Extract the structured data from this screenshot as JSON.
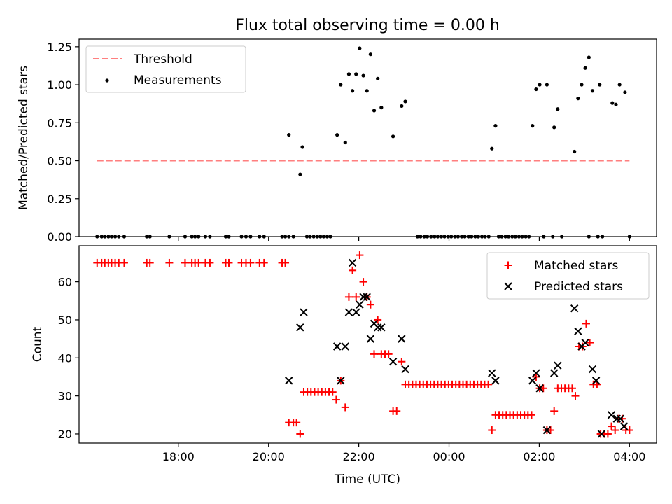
{
  "chart_data": {
    "title": "Flux total observing time = 0.00 h",
    "xlabel": "Time (UTC)",
    "x_unit": "hours since 16:00 UTC",
    "xlim": [
      -0.2,
      12.6
    ],
    "x_ticks": [
      {
        "value": 2,
        "label": "18:00"
      },
      {
        "value": 4,
        "label": "20:00"
      },
      {
        "value": 6,
        "label": "22:00"
      },
      {
        "value": 8,
        "label": "00:00"
      },
      {
        "value": 10,
        "label": "02:00"
      },
      {
        "value": 12,
        "label": "04:00"
      }
    ],
    "top": {
      "type": "scatter",
      "ylabel": "Matched/Predicted stars",
      "ylim": [
        0,
        1.3
      ],
      "y_ticks": [
        "0.00",
        "0.25",
        "0.50",
        "0.75",
        "1.00",
        "1.25"
      ],
      "threshold": {
        "label": "Threshold",
        "value": 0.5,
        "x_range": [
          0.2,
          12.0
        ],
        "color": "#ff7f7f"
      },
      "measurements": {
        "label": "Measurements",
        "color": "#000000",
        "points": [
          [
            0.2,
            0
          ],
          [
            0.3,
            0
          ],
          [
            0.37,
            0
          ],
          [
            0.45,
            0
          ],
          [
            0.52,
            0
          ],
          [
            0.6,
            0
          ],
          [
            0.68,
            0
          ],
          [
            0.8,
            0
          ],
          [
            1.3,
            0
          ],
          [
            1.37,
            0
          ],
          [
            1.8,
            0
          ],
          [
            2.15,
            0
          ],
          [
            2.3,
            0
          ],
          [
            2.37,
            0
          ],
          [
            2.45,
            0
          ],
          [
            2.6,
            0
          ],
          [
            2.7,
            0
          ],
          [
            3.05,
            0
          ],
          [
            3.12,
            0
          ],
          [
            3.4,
            0
          ],
          [
            3.5,
            0
          ],
          [
            3.6,
            0
          ],
          [
            3.8,
            0
          ],
          [
            3.9,
            0
          ],
          [
            4.3,
            0
          ],
          [
            4.37,
            0
          ],
          [
            4.45,
            0
          ],
          [
            4.55,
            0
          ],
          [
            4.85,
            0
          ],
          [
            4.92,
            0
          ],
          [
            5.0,
            0
          ],
          [
            5.08,
            0
          ],
          [
            5.15,
            0
          ],
          [
            5.22,
            0
          ],
          [
            5.3,
            0
          ],
          [
            5.37,
            0
          ],
          [
            7.3,
            0
          ],
          [
            7.37,
            0
          ],
          [
            7.45,
            0
          ],
          [
            7.52,
            0
          ],
          [
            7.6,
            0
          ],
          [
            7.68,
            0
          ],
          [
            7.75,
            0
          ],
          [
            7.83,
            0
          ],
          [
            7.9,
            0
          ],
          [
            7.98,
            0
          ],
          [
            8.05,
            0
          ],
          [
            8.13,
            0
          ],
          [
            8.2,
            0
          ],
          [
            8.28,
            0
          ],
          [
            8.35,
            0
          ],
          [
            8.43,
            0
          ],
          [
            8.5,
            0
          ],
          [
            8.58,
            0
          ],
          [
            8.65,
            0
          ],
          [
            8.73,
            0
          ],
          [
            8.8,
            0
          ],
          [
            8.88,
            0
          ],
          [
            9.1,
            0
          ],
          [
            9.17,
            0
          ],
          [
            9.25,
            0
          ],
          [
            9.32,
            0
          ],
          [
            9.4,
            0
          ],
          [
            9.47,
            0
          ],
          [
            9.55,
            0
          ],
          [
            9.62,
            0
          ],
          [
            9.7,
            0
          ],
          [
            9.77,
            0
          ],
          [
            10.1,
            0
          ],
          [
            10.3,
            0
          ],
          [
            10.5,
            0
          ],
          [
            11.1,
            0
          ],
          [
            11.3,
            0
          ],
          [
            11.4,
            0
          ],
          [
            12.0,
            0
          ],
          [
            4.45,
            0.67
          ],
          [
            4.7,
            0.41
          ],
          [
            4.75,
            0.59
          ],
          [
            5.52,
            0.67
          ],
          [
            5.6,
            1.0
          ],
          [
            5.7,
            0.62
          ],
          [
            5.78,
            1.07
          ],
          [
            5.86,
            0.96
          ],
          [
            5.94,
            1.07
          ],
          [
            6.02,
            1.24
          ],
          [
            6.1,
            1.06
          ],
          [
            6.18,
            0.96
          ],
          [
            6.26,
            1.2
          ],
          [
            6.34,
            0.83
          ],
          [
            6.42,
            1.04
          ],
          [
            6.5,
            0.85
          ],
          [
            6.76,
            0.66
          ],
          [
            6.95,
            0.86
          ],
          [
            7.03,
            0.89
          ],
          [
            8.95,
            0.58
          ],
          [
            9.03,
            0.73
          ],
          [
            9.85,
            0.73
          ],
          [
            9.93,
            0.97
          ],
          [
            10.01,
            1.0
          ],
          [
            10.17,
            1.0
          ],
          [
            10.33,
            0.72
          ],
          [
            10.41,
            0.84
          ],
          [
            10.78,
            0.56
          ],
          [
            10.86,
            0.91
          ],
          [
            10.94,
            1.0
          ],
          [
            11.02,
            1.11
          ],
          [
            11.1,
            1.18
          ],
          [
            11.18,
            0.96
          ],
          [
            11.34,
            1.0
          ],
          [
            11.62,
            0.88
          ],
          [
            11.7,
            0.87
          ],
          [
            11.78,
            1.0
          ],
          [
            11.9,
            0.95
          ]
        ]
      }
    },
    "bottom": {
      "type": "scatter",
      "ylabel": "Count",
      "ylim": [
        17.6,
        69.5
      ],
      "y_ticks": [
        "20",
        "30",
        "40",
        "50",
        "60"
      ],
      "matched": {
        "label": "Matched stars",
        "color": "#ff0000",
        "marker": "+",
        "points": [
          [
            0.2,
            65
          ],
          [
            0.3,
            65
          ],
          [
            0.37,
            65
          ],
          [
            0.45,
            65
          ],
          [
            0.52,
            65
          ],
          [
            0.6,
            65
          ],
          [
            0.68,
            65
          ],
          [
            0.8,
            65
          ],
          [
            1.3,
            65
          ],
          [
            1.37,
            65
          ],
          [
            1.8,
            65
          ],
          [
            2.15,
            65
          ],
          [
            2.3,
            65
          ],
          [
            2.37,
            65
          ],
          [
            2.45,
            65
          ],
          [
            2.6,
            65
          ],
          [
            2.7,
            65
          ],
          [
            3.05,
            65
          ],
          [
            3.12,
            65
          ],
          [
            3.4,
            65
          ],
          [
            3.5,
            65
          ],
          [
            3.6,
            65
          ],
          [
            3.8,
            65
          ],
          [
            3.9,
            65
          ],
          [
            4.3,
            65
          ],
          [
            4.37,
            65
          ],
          [
            4.45,
            23
          ],
          [
            4.55,
            23
          ],
          [
            4.62,
            23
          ],
          [
            4.7,
            20
          ],
          [
            4.78,
            31
          ],
          [
            4.86,
            31
          ],
          [
            4.94,
            31
          ],
          [
            5.02,
            31
          ],
          [
            5.1,
            31
          ],
          [
            5.18,
            31
          ],
          [
            5.26,
            31
          ],
          [
            5.34,
            31
          ],
          [
            5.42,
            31
          ],
          [
            5.5,
            29
          ],
          [
            5.6,
            34
          ],
          [
            5.7,
            27
          ],
          [
            5.78,
            56
          ],
          [
            5.86,
            63
          ],
          [
            5.94,
            56
          ],
          [
            6.02,
            67
          ],
          [
            6.1,
            60
          ],
          [
            6.18,
            56
          ],
          [
            6.26,
            54
          ],
          [
            6.34,
            41
          ],
          [
            6.42,
            50
          ],
          [
            6.5,
            41
          ],
          [
            6.58,
            41
          ],
          [
            6.66,
            41
          ],
          [
            6.76,
            26
          ],
          [
            6.84,
            26
          ],
          [
            6.95,
            39
          ],
          [
            7.03,
            33
          ],
          [
            7.11,
            33
          ],
          [
            7.19,
            33
          ],
          [
            7.27,
            33
          ],
          [
            7.35,
            33
          ],
          [
            7.43,
            33
          ],
          [
            7.51,
            33
          ],
          [
            7.59,
            33
          ],
          [
            7.67,
            33
          ],
          [
            7.75,
            33
          ],
          [
            7.83,
            33
          ],
          [
            7.91,
            33
          ],
          [
            7.99,
            33
          ],
          [
            8.07,
            33
          ],
          [
            8.15,
            33
          ],
          [
            8.23,
            33
          ],
          [
            8.31,
            33
          ],
          [
            8.39,
            33
          ],
          [
            8.47,
            33
          ],
          [
            8.55,
            33
          ],
          [
            8.63,
            33
          ],
          [
            8.71,
            33
          ],
          [
            8.79,
            33
          ],
          [
            8.87,
            33
          ],
          [
            8.95,
            21
          ],
          [
            9.03,
            25
          ],
          [
            9.11,
            25
          ],
          [
            9.19,
            25
          ],
          [
            9.27,
            25
          ],
          [
            9.35,
            25
          ],
          [
            9.43,
            25
          ],
          [
            9.51,
            25
          ],
          [
            9.59,
            25
          ],
          [
            9.67,
            25
          ],
          [
            9.75,
            25
          ],
          [
            9.83,
            25
          ],
          [
            9.93,
            35
          ],
          [
            10.01,
            32
          ],
          [
            10.09,
            32
          ],
          [
            10.17,
            21
          ],
          [
            10.25,
            21
          ],
          [
            10.33,
            26
          ],
          [
            10.41,
            32
          ],
          [
            10.49,
            32
          ],
          [
            10.57,
            32
          ],
          [
            10.65,
            32
          ],
          [
            10.73,
            32
          ],
          [
            10.8,
            30
          ],
          [
            10.88,
            43
          ],
          [
            10.96,
            43
          ],
          [
            11.04,
            49
          ],
          [
            11.12,
            44
          ],
          [
            11.2,
            33
          ],
          [
            11.28,
            33
          ],
          [
            11.36,
            20
          ],
          [
            11.44,
            20
          ],
          [
            11.52,
            20
          ],
          [
            11.6,
            22
          ],
          [
            11.68,
            21
          ],
          [
            11.76,
            24
          ],
          [
            11.84,
            24
          ],
          [
            11.92,
            21
          ],
          [
            12.0,
            21
          ]
        ]
      },
      "predicted": {
        "label": "Predicted stars",
        "color": "#000000",
        "marker": "x",
        "points": [
          [
            4.45,
            34
          ],
          [
            4.7,
            48
          ],
          [
            4.78,
            52
          ],
          [
            5.52,
            43
          ],
          [
            5.6,
            34
          ],
          [
            5.7,
            43
          ],
          [
            5.78,
            52
          ],
          [
            5.86,
            65
          ],
          [
            5.94,
            52
          ],
          [
            6.02,
            54
          ],
          [
            6.1,
            56
          ],
          [
            6.18,
            56
          ],
          [
            6.26,
            45
          ],
          [
            6.34,
            49
          ],
          [
            6.42,
            48
          ],
          [
            6.5,
            48
          ],
          [
            6.76,
            39
          ],
          [
            6.95,
            45
          ],
          [
            7.03,
            37
          ],
          [
            8.95,
            36
          ],
          [
            9.03,
            34
          ],
          [
            9.85,
            34
          ],
          [
            9.93,
            36
          ],
          [
            10.01,
            32
          ],
          [
            10.17,
            21
          ],
          [
            10.33,
            36
          ],
          [
            10.41,
            38
          ],
          [
            10.78,
            53
          ],
          [
            10.86,
            47
          ],
          [
            10.94,
            43
          ],
          [
            11.02,
            44
          ],
          [
            11.18,
            37
          ],
          [
            11.26,
            34
          ],
          [
            11.38,
            20
          ],
          [
            11.6,
            25
          ],
          [
            11.72,
            24
          ],
          [
            11.8,
            24
          ],
          [
            11.88,
            22
          ]
        ]
      }
    }
  }
}
